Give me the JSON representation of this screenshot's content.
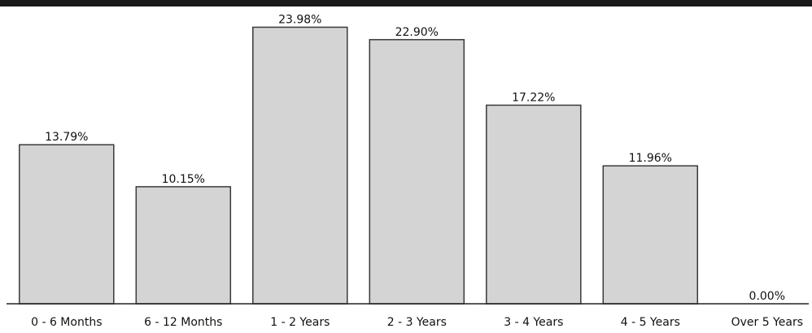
{
  "chart_data": {
    "type": "bar",
    "categories": [
      "0 - 6 Months",
      "6 - 12 Months",
      "1 - 2 Years",
      "2 - 3 Years",
      "3 - 4 Years",
      "4 - 5 Years",
      "Over 5 Years"
    ],
    "values": [
      13.79,
      10.15,
      23.98,
      22.9,
      17.22,
      11.96,
      0.0
    ],
    "value_labels": [
      "13.79%",
      "10.15%",
      "23.98%",
      "22.90%",
      "17.22%",
      "11.96%",
      "0.00%"
    ],
    "ylim": [
      0,
      24
    ],
    "grid": false,
    "legend": "none",
    "colors": {
      "bar_fill": "#d4d4d4",
      "bar_stroke": "#3a3a3a",
      "axis": "#222222",
      "top_band": "#1a1a1a"
    }
  }
}
